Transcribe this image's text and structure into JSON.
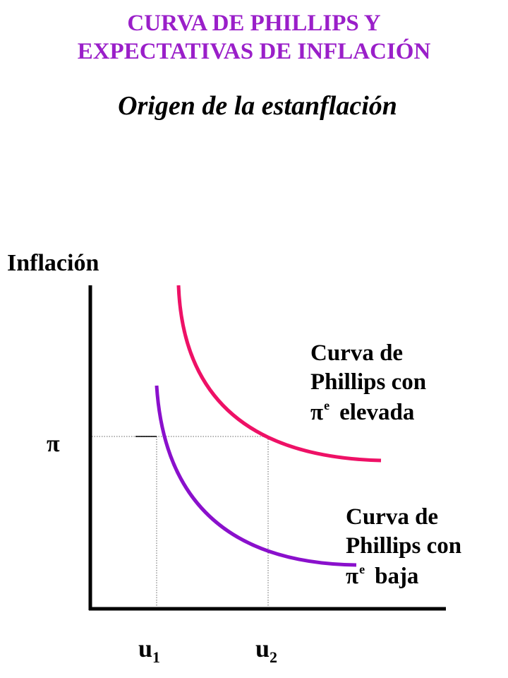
{
  "title_line1": "CURVA DE PHILLIPS Y",
  "title_line2": "EXPECTATIVAS DE INFLACIÓN",
  "subtitle": "Origen de la estanflación",
  "y_axis_label": "Inflación",
  "pi_label": "π",
  "u1": {
    "base": "u",
    "sub": "1"
  },
  "u2": {
    "base": "u",
    "sub": "2"
  },
  "curve_high": {
    "line1": "Curva de",
    "line2": "Phillips con",
    "pi": "π",
    "sup": "e",
    "word": "elevada",
    "color": "#ee1166"
  },
  "curve_low": {
    "line1": "Curva de",
    "line2": "Phillips con",
    "pi": "π",
    "sup": "e",
    "word": "baja",
    "color": "#8a10cc"
  },
  "colors": {
    "title": "#9a1fc9",
    "axis": "#000000",
    "guide": "#999999"
  }
}
